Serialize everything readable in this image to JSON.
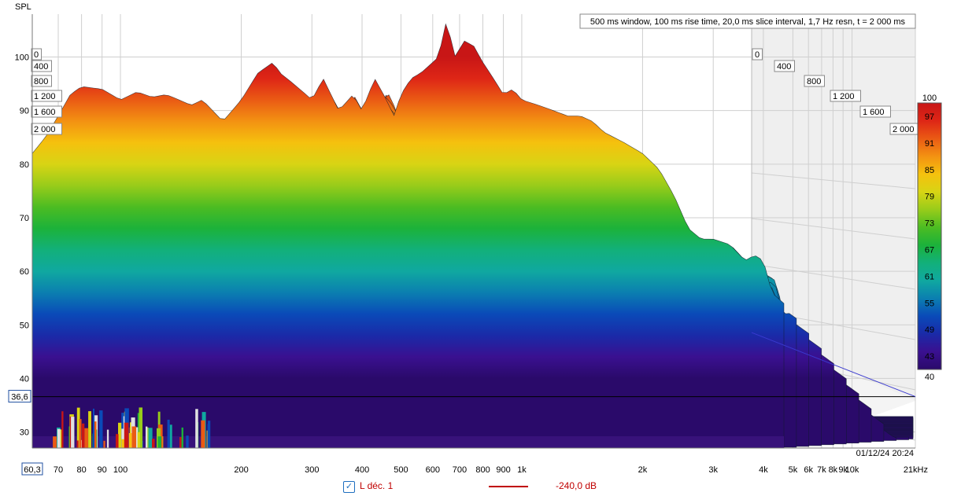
{
  "chart_data": {
    "type": "waterfall",
    "title": "500 ms window, 100 ms rise time, 20,0 ms slice interval, 1,7 Hz resn, t = 2 000 ms",
    "ylabel": "SPL",
    "xlabel": "",
    "x_unit": "Hz",
    "y_ticks": [
      100,
      90,
      80,
      70,
      60,
      50,
      40,
      30
    ],
    "ylim": [
      27,
      108
    ],
    "x_ticks": [
      {
        "v": 70,
        "label": "70"
      },
      {
        "v": 80,
        "label": "80"
      },
      {
        "v": 90,
        "label": "90"
      },
      {
        "v": 100,
        "label": "100"
      },
      {
        "v": 200,
        "label": "200"
      },
      {
        "v": 300,
        "label": "300"
      },
      {
        "v": 400,
        "label": "400"
      },
      {
        "v": 500,
        "label": "500"
      },
      {
        "v": 600,
        "label": "600"
      },
      {
        "v": 700,
        "label": "700"
      },
      {
        "v": 800,
        "label": "800"
      },
      {
        "v": 900,
        "label": "900"
      },
      {
        "v": 1000,
        "label": "1k"
      },
      {
        "v": 2000,
        "label": "2k"
      },
      {
        "v": 3000,
        "label": "3k"
      },
      {
        "v": 4000,
        "label": "4k"
      },
      {
        "v": 5000,
        "label": "5k"
      },
      {
        "v": 6000,
        "label": "6k"
      },
      {
        "v": 7000,
        "label": "7k"
      },
      {
        "v": 8000,
        "label": "8k"
      },
      {
        "v": 9000,
        "label": "9k"
      },
      {
        "v": 10000,
        "label": "10k"
      },
      {
        "v": 21000,
        "label": "21kHz"
      }
    ],
    "xlim": [
      60.3,
      21000
    ],
    "x_start_label": "60,3",
    "cursor_y_label": "36,6",
    "cursor_y": 36.6,
    "time_labels": [
      "0",
      "400",
      "800",
      "1 200",
      "1 600",
      "2 000"
    ],
    "time_labels_left": [
      "0",
      "400",
      "800",
      "1 200",
      "1 600",
      "2 000"
    ],
    "colorbar": {
      "min": 40,
      "max": 100,
      "labels": [
        "100",
        "97",
        "91",
        "85",
        "79",
        "73",
        "67",
        "61",
        "55",
        "49",
        "43",
        "40"
      ],
      "colors": [
        "#2a0a6a",
        "#3a1090",
        "#1a2aa8",
        "#0a4ab8",
        "#0b7fb0",
        "#10a8a0",
        "#12b07a",
        "#1cb23a",
        "#4cbc22",
        "#98cc1a",
        "#d8d414",
        "#f5c10e",
        "#f39212",
        "#ea5a14",
        "#de2616",
        "#c81616"
      ]
    },
    "datestamp": "01/12/24 20:24",
    "first_slice": {
      "x": [
        60.3,
        65,
        70,
        75,
        80,
        90,
        100,
        110,
        120,
        130,
        140,
        150,
        160,
        180,
        200,
        220,
        240,
        250,
        270,
        290,
        300,
        320,
        350,
        380,
        400,
        430,
        460,
        480,
        500,
        530,
        560,
        600,
        620,
        650,
        680,
        720,
        760,
        800,
        850,
        900,
        950,
        1000,
        1100,
        1200,
        1300,
        1400,
        1500,
        1600,
        1800,
        2000,
        2200,
        2400,
        2600,
        2800,
        3000,
        3300,
        3600,
        3800,
        4000,
        4200,
        4500
      ],
      "y": [
        82,
        85,
        89,
        93,
        94.5,
        94,
        92,
        93.5,
        92.5,
        93,
        92,
        91,
        92,
        88,
        92,
        97,
        99,
        97,
        95,
        93,
        92,
        96,
        90,
        93,
        90,
        96,
        92,
        89,
        93,
        96,
        97,
        99,
        100,
        107,
        100,
        103,
        102,
        99,
        96,
        93,
        94,
        92,
        91,
        90,
        89,
        89,
        88,
        86,
        84,
        82,
        79,
        74,
        68,
        66,
        66,
        65,
        62,
        63,
        62,
        56,
        54
      ]
    },
    "floor_db": 27.5,
    "slices": 101
  },
  "legend": {
    "checkbox_glyph": "✓",
    "name": "L déc. 1",
    "value": "-240,0 dB",
    "line_color": "#c00000"
  },
  "colors": {
    "floor": "#38127a",
    "grid": "#cfcfcf",
    "cursor": "#000000",
    "perspective_line": "#3a3ad0"
  }
}
